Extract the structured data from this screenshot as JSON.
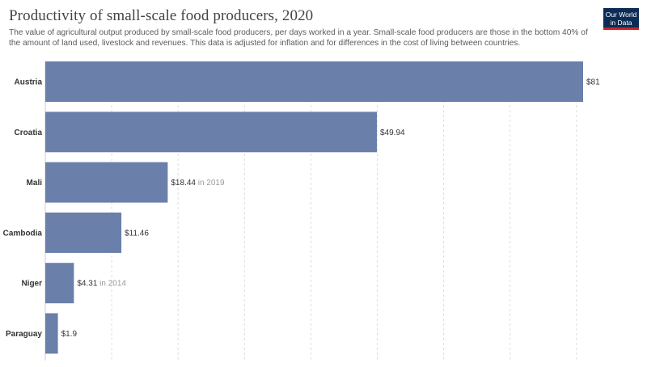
{
  "header": {
    "title": "Productivity of small-scale food producers, 2020",
    "subtitle": "The value of agricultural output produced by small-scale food producers, per days worked in a year. Small-scale food producers are those in the bottom 40% of the amount of land used, livestock and revenues. This data is adjusted for inflation and for differences in the cost of living between countries.",
    "logo_line1": "Our World",
    "logo_line2": "in Data"
  },
  "chart_data": {
    "type": "bar",
    "orientation": "horizontal",
    "title": "Productivity of small-scale food producers, 2020",
    "categories": [
      "Austria",
      "Croatia",
      "Mali",
      "Cambodia",
      "Niger",
      "Paraguay"
    ],
    "values": [
      81,
      49.94,
      18.44,
      11.46,
      4.31,
      1.9
    ],
    "value_labels": [
      "$81",
      "$49.94",
      "$18.44",
      "$11.46",
      "$4.31",
      "$1.9"
    ],
    "year_notes": [
      "",
      "",
      "in 2019",
      "",
      "in 2014",
      ""
    ],
    "xlim": [
      0,
      81
    ],
    "grid": true,
    "bar_color": "#6a7faa"
  }
}
